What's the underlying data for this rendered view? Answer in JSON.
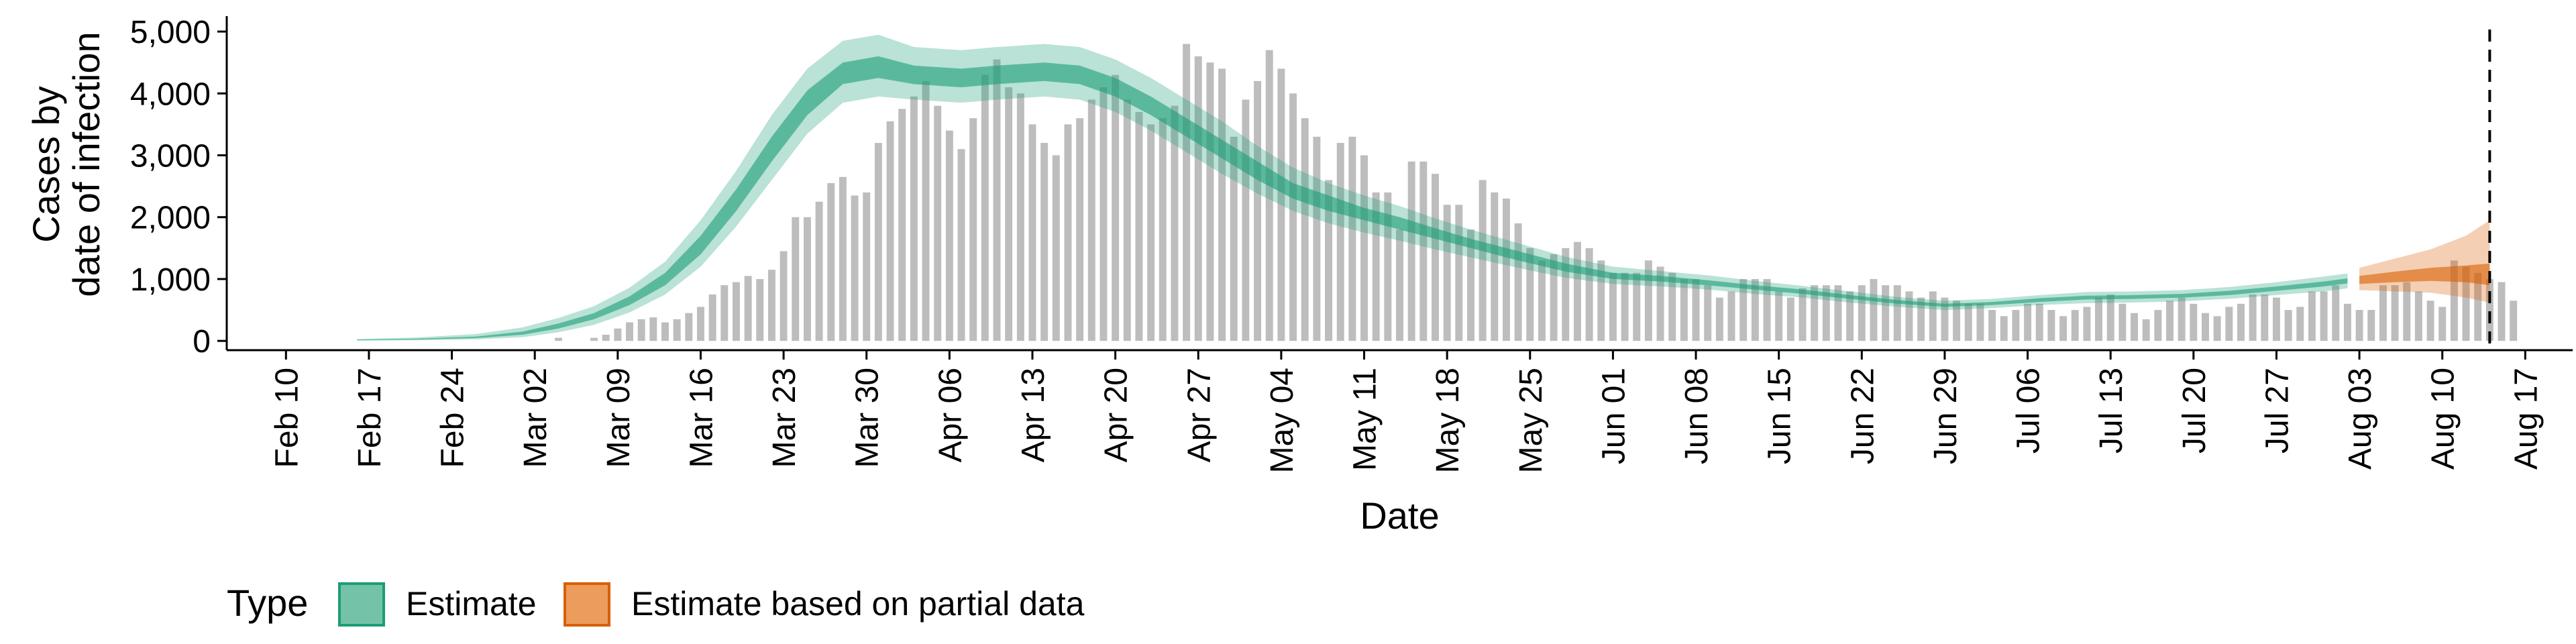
{
  "chart_data": {
    "type": "bar",
    "xlabel": "Date",
    "ylabel_line1": "Cases by",
    "ylabel_line2": "date of infection",
    "ylim": [
      0,
      5000
    ],
    "yticks": [
      0,
      1000,
      2000,
      3000,
      4000,
      5000
    ],
    "ytick_labels": [
      "0",
      "1,000",
      "2,000",
      "3,000",
      "4,000",
      "5,000"
    ],
    "xlim": [
      "2020-02-05",
      "2020-08-21"
    ],
    "xticks": [
      "2020-02-10",
      "2020-02-17",
      "2020-02-24",
      "2020-03-02",
      "2020-03-09",
      "2020-03-16",
      "2020-03-23",
      "2020-03-30",
      "2020-04-06",
      "2020-04-13",
      "2020-04-20",
      "2020-04-27",
      "2020-05-04",
      "2020-05-11",
      "2020-05-18",
      "2020-05-25",
      "2020-06-01",
      "2020-06-08",
      "2020-06-15",
      "2020-06-22",
      "2020-06-29",
      "2020-07-06",
      "2020-07-13",
      "2020-07-20",
      "2020-07-27",
      "2020-08-03",
      "2020-08-10",
      "2020-08-17"
    ],
    "xtick_labels": [
      "Feb 10",
      "Feb 17",
      "Feb 24",
      "Mar 02",
      "Mar 09",
      "Mar 16",
      "Mar 23",
      "Mar 30",
      "Apr 06",
      "Apr 13",
      "Apr 20",
      "Apr 27",
      "May 04",
      "May 11",
      "May 18",
      "May 25",
      "Jun 01",
      "Jun 08",
      "Jun 15",
      "Jun 22",
      "Jun 29",
      "Jul 06",
      "Jul 13",
      "Jul 20",
      "Jul 27",
      "Aug 03",
      "Aug 10",
      "Aug 17"
    ],
    "vline_date": "2020-08-14",
    "bars": {
      "start": "2020-02-28",
      "values": [
        0,
        0,
        0,
        0,
        0,
        50,
        0,
        0,
        50,
        100,
        200,
        300,
        350,
        380,
        300,
        350,
        450,
        550,
        750,
        900,
        950,
        1050,
        1000,
        1150,
        1450,
        2000,
        2000,
        2250,
        2550,
        2650,
        2350,
        2400,
        3200,
        3550,
        3750,
        3950,
        4200,
        3800,
        3400,
        3100,
        3600,
        4300,
        4550,
        4100,
        4000,
        3500,
        3200,
        3000,
        3500,
        3600,
        3900,
        4100,
        4300,
        3900,
        3700,
        3500,
        3600,
        3800,
        4800,
        4600,
        4500,
        4400,
        3300,
        3900,
        4200,
        4700,
        4400,
        4000,
        3600,
        3300,
        2600,
        3200,
        3300,
        3000,
        2400,
        2400,
        1800,
        2900,
        2900,
        2700,
        2200,
        2200,
        1800,
        2600,
        2400,
        2300,
        1900,
        1500,
        1300,
        1400,
        1500,
        1600,
        1500,
        1300,
        1100,
        1100,
        1100,
        1300,
        1200,
        1100,
        1000,
        1000,
        900,
        700,
        800,
        1000,
        1000,
        1000,
        800,
        700,
        850,
        900,
        900,
        900,
        800,
        900,
        1000,
        900,
        900,
        800,
        700,
        800,
        700,
        650,
        600,
        600,
        500,
        400,
        500,
        600,
        600,
        500,
        400,
        500,
        550,
        700,
        750,
        600,
        450,
        350,
        500,
        650,
        700,
        600,
        450,
        400,
        550,
        600,
        750,
        750,
        700,
        500,
        550,
        800,
        800,
        900,
        600,
        500,
        500,
        900,
        900,
        950,
        800,
        650,
        550,
        1300,
        1200,
        1100,
        1000,
        950,
        650
      ]
    },
    "estimate": {
      "name": "Estimate",
      "color": "#1B9E77",
      "points": [
        [
          "2020-02-16",
          10,
          20,
          5,
          30
        ],
        [
          "2020-02-21",
          20,
          35,
          10,
          55
        ],
        [
          "2020-02-26",
          45,
          70,
          25,
          110
        ],
        [
          "2020-03-01",
          100,
          150,
          60,
          220
        ],
        [
          "2020-03-04",
          200,
          280,
          140,
          370
        ],
        [
          "2020-03-07",
          350,
          450,
          260,
          560
        ],
        [
          "2020-03-10",
          580,
          720,
          460,
          860
        ],
        [
          "2020-03-13",
          900,
          1100,
          750,
          1280
        ],
        [
          "2020-03-16",
          1400,
          1700,
          1200,
          1950
        ],
        [
          "2020-03-19",
          2100,
          2450,
          1850,
          2750
        ],
        [
          "2020-03-22",
          2900,
          3300,
          2600,
          3650
        ],
        [
          "2020-03-25",
          3650,
          4050,
          3350,
          4400
        ],
        [
          "2020-03-28",
          4150,
          4500,
          3850,
          4850
        ],
        [
          "2020-03-31",
          4250,
          4600,
          3950,
          4950
        ],
        [
          "2020-04-03",
          4150,
          4450,
          3900,
          4750
        ],
        [
          "2020-04-07",
          4100,
          4400,
          3850,
          4700
        ],
        [
          "2020-04-10",
          4150,
          4450,
          3900,
          4750
        ],
        [
          "2020-04-14",
          4200,
          4500,
          3950,
          4800
        ],
        [
          "2020-04-17",
          4150,
          4450,
          3900,
          4750
        ],
        [
          "2020-04-20",
          3950,
          4250,
          3700,
          4550
        ],
        [
          "2020-04-23",
          3650,
          3950,
          3400,
          4250
        ],
        [
          "2020-04-26",
          3300,
          3600,
          3050,
          3900
        ],
        [
          "2020-04-29",
          2950,
          3250,
          2700,
          3550
        ],
        [
          "2020-05-02",
          2600,
          2900,
          2380,
          3150
        ],
        [
          "2020-05-05",
          2300,
          2550,
          2100,
          2800
        ],
        [
          "2020-05-08",
          2100,
          2350,
          1900,
          2550
        ],
        [
          "2020-05-11",
          1950,
          2150,
          1750,
          2350
        ],
        [
          "2020-05-14",
          1800,
          2000,
          1620,
          2180
        ],
        [
          "2020-05-17",
          1650,
          1820,
          1480,
          1980
        ],
        [
          "2020-05-20",
          1500,
          1650,
          1350,
          1800
        ],
        [
          "2020-05-24",
          1300,
          1450,
          1180,
          1580
        ],
        [
          "2020-05-28",
          1120,
          1250,
          1020,
          1360
        ],
        [
          "2020-06-01",
          1000,
          1100,
          920,
          1200
        ],
        [
          "2020-06-05",
          960,
          1050,
          880,
          1130
        ],
        [
          "2020-06-09",
          900,
          980,
          830,
          1060
        ],
        [
          "2020-06-13",
          830,
          900,
          760,
          970
        ],
        [
          "2020-06-17",
          760,
          830,
          700,
          890
        ],
        [
          "2020-06-21",
          680,
          740,
          620,
          800
        ],
        [
          "2020-06-25",
          600,
          660,
          550,
          710
        ],
        [
          "2020-06-29",
          550,
          600,
          500,
          650
        ],
        [
          "2020-07-03",
          580,
          630,
          530,
          680
        ],
        [
          "2020-07-07",
          630,
          690,
          580,
          740
        ],
        [
          "2020-07-11",
          670,
          730,
          610,
          790
        ],
        [
          "2020-07-15",
          680,
          740,
          620,
          800
        ],
        [
          "2020-07-19",
          700,
          760,
          640,
          820
        ],
        [
          "2020-07-23",
          740,
          810,
          680,
          870
        ],
        [
          "2020-07-27",
          810,
          880,
          740,
          950
        ],
        [
          "2020-07-31",
          880,
          960,
          800,
          1040
        ],
        [
          "2020-08-02",
          930,
          1010,
          850,
          1090
        ]
      ]
    },
    "estimate_partial": {
      "name": "Estimate based on partial data",
      "color": "#D95F02",
      "points": [
        [
          "2020-08-03",
          920,
          1050,
          820,
          1180
        ],
        [
          "2020-08-06",
          950,
          1120,
          800,
          1330
        ],
        [
          "2020-08-09",
          970,
          1180,
          780,
          1480
        ],
        [
          "2020-08-12",
          950,
          1220,
          700,
          1700
        ],
        [
          "2020-08-14",
          900,
          1250,
          620,
          1950
        ]
      ]
    },
    "legend": {
      "title": "Type",
      "items": [
        {
          "label": "Estimate",
          "fill": "#74C3A8",
          "stroke": "#1B9E77"
        },
        {
          "label": "Estimate based on partial data",
          "fill": "#EC9C5C",
          "stroke": "#D95F02"
        }
      ],
      "position": "bottom-left"
    },
    "bar_color": "#BDBDBD",
    "grid": false
  }
}
